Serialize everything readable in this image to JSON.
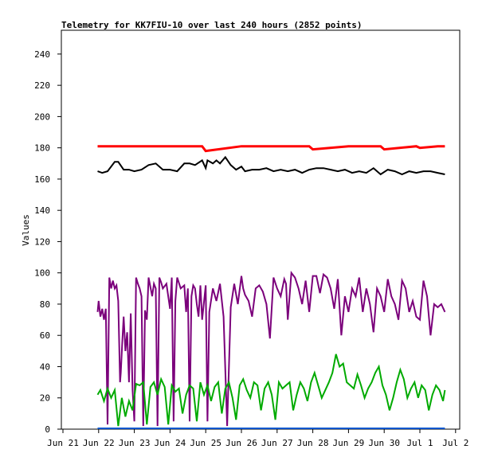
{
  "chart_data": {
    "type": "line",
    "title": "Telemetry for KK7FIU-10 over last 240 hours (2852 points)",
    "ylabel": "Values",
    "xlabel": "",
    "ylim": [
      0,
      250
    ],
    "xlim": [
      0,
      11
    ],
    "grid": false,
    "legend": "none",
    "yticks": [
      0,
      20,
      40,
      60,
      80,
      100,
      120,
      140,
      160,
      180,
      200,
      220,
      240
    ],
    "xticks": [
      {
        "x": 0,
        "label": "Jun 21"
      },
      {
        "x": 1,
        "label": "Jun 22"
      },
      {
        "x": 2,
        "label": "Jun 23"
      },
      {
        "x": 3,
        "label": "Jun 24"
      },
      {
        "x": 4,
        "label": "Jun 25"
      },
      {
        "x": 5,
        "label": "Jun 26"
      },
      {
        "x": 6,
        "label": "Jun 27"
      },
      {
        "x": 7,
        "label": "Jun 28"
      },
      {
        "x": 8,
        "label": "Jun 29"
      },
      {
        "x": 9,
        "label": "Jun 30"
      },
      {
        "x": 10,
        "label": "Jul 1"
      },
      {
        "x": 11,
        "label": "Jul 2"
      }
    ],
    "series": [
      {
        "color": "#ff0000",
        "x": [
          0.97,
          2.0,
          2.9,
          3.9,
          4.0,
          5.0,
          6.0,
          6.9,
          7.0,
          8.0,
          8.9,
          9.0,
          9.9,
          10.0,
          10.5,
          10.7
        ],
        "y": [
          181,
          181,
          181,
          181,
          178,
          181,
          181,
          181,
          179,
          181,
          181,
          179,
          181,
          180,
          181,
          181
        ]
      },
      {
        "color": "#000000",
        "x": [
          0.97,
          1.1,
          1.25,
          1.45,
          1.5,
          1.55,
          1.7,
          1.85,
          2.0,
          2.2,
          2.4,
          2.6,
          2.8,
          3.0,
          3.2,
          3.4,
          3.55,
          3.7,
          3.9,
          4.0,
          4.05,
          4.2,
          4.3,
          4.4,
          4.55,
          4.7,
          4.85,
          5.0,
          5.1,
          5.3,
          5.5,
          5.7,
          5.9,
          6.1,
          6.3,
          6.5,
          6.7,
          6.9,
          7.1,
          7.3,
          7.5,
          7.7,
          7.9,
          8.1,
          8.3,
          8.5,
          8.7,
          8.9,
          9.1,
          9.3,
          9.5,
          9.7,
          9.9,
          10.1,
          10.3,
          10.5,
          10.7
        ],
        "y": [
          165,
          164,
          165,
          171,
          171,
          171,
          166,
          166,
          165,
          166,
          169,
          170,
          166,
          166,
          165,
          170,
          170,
          169,
          172,
          167,
          172,
          170,
          172,
          170,
          174,
          169,
          166,
          168,
          165,
          166,
          166,
          167,
          165,
          166,
          165,
          166,
          164,
          166,
          167,
          167,
          166,
          165,
          166,
          164,
          165,
          164,
          167,
          163,
          166,
          165,
          163,
          165,
          164,
          165,
          165,
          164,
          163
        ]
      },
      {
        "color": "#7b007b",
        "x": [
          0.97,
          1.0,
          1.05,
          1.1,
          1.15,
          1.2,
          1.25,
          1.3,
          1.35,
          1.4,
          1.45,
          1.5,
          1.55,
          1.6,
          1.62,
          1.66,
          1.7,
          1.75,
          1.8,
          1.85,
          1.9,
          1.95,
          2.0,
          2.05,
          2.1,
          2.15,
          2.2,
          2.25,
          2.3,
          2.35,
          2.4,
          2.5,
          2.55,
          2.6,
          2.65,
          2.7,
          2.75,
          2.8,
          2.9,
          3.0,
          3.05,
          3.1,
          3.15,
          3.2,
          3.3,
          3.4,
          3.45,
          3.5,
          3.55,
          3.6,
          3.65,
          3.7,
          3.75,
          3.8,
          3.85,
          3.9,
          4.0,
          4.05,
          4.1,
          4.2,
          4.3,
          4.4,
          4.5,
          4.6,
          4.7,
          4.8,
          4.9,
          5.0,
          5.05,
          5.1,
          5.2,
          5.3,
          5.4,
          5.5,
          5.6,
          5.7,
          5.8,
          5.9,
          6.0,
          6.1,
          6.2,
          6.25,
          6.3,
          6.4,
          6.5,
          6.6,
          6.7,
          6.8,
          6.9,
          7.0,
          7.1,
          7.2,
          7.3,
          7.4,
          7.5,
          7.6,
          7.7,
          7.8,
          7.9,
          8.0,
          8.1,
          8.2,
          8.3,
          8.4,
          8.5,
          8.6,
          8.7,
          8.8,
          8.9,
          9.0,
          9.1,
          9.2,
          9.3,
          9.4,
          9.5,
          9.6,
          9.7,
          9.8,
          9.9,
          10.0,
          10.1,
          10.2,
          10.3,
          10.4,
          10.5,
          10.6,
          10.7
        ],
        "y": [
          75,
          82,
          72,
          77,
          70,
          77,
          3,
          97,
          90,
          95,
          90,
          92,
          82,
          30,
          36,
          55,
          72,
          50,
          62,
          30,
          74,
          25,
          5,
          97,
          93,
          90,
          85,
          2,
          76,
          70,
          97,
          85,
          93,
          90,
          2,
          97,
          94,
          90,
          93,
          77,
          97,
          5,
          82,
          97,
          90,
          92,
          75,
          90,
          5,
          85,
          92,
          90,
          80,
          72,
          92,
          70,
          92,
          5,
          75,
          90,
          82,
          93,
          72,
          2,
          78,
          93,
          80,
          98,
          90,
          86,
          82,
          72,
          90,
          92,
          88,
          80,
          58,
          97,
          90,
          85,
          96,
          93,
          70,
          100,
          97,
          90,
          80,
          95,
          75,
          98,
          98,
          87,
          99,
          97,
          90,
          77,
          96,
          60,
          85,
          75,
          90,
          85,
          97,
          75,
          90,
          80,
          62,
          90,
          85,
          75,
          96,
          85,
          80,
          70,
          95,
          90,
          75,
          82,
          72,
          70,
          95,
          85,
          60,
          80,
          78,
          80,
          75
        ]
      },
      {
        "color": "#00aa00",
        "x": [
          0.97,
          1.05,
          1.15,
          1.25,
          1.35,
          1.45,
          1.55,
          1.65,
          1.75,
          1.85,
          1.95,
          2.05,
          2.15,
          2.25,
          2.35,
          2.45,
          2.55,
          2.65,
          2.75,
          2.85,
          2.95,
          3.05,
          3.15,
          3.25,
          3.35,
          3.45,
          3.55,
          3.65,
          3.75,
          3.85,
          3.95,
          4.05,
          4.15,
          4.25,
          4.35,
          4.45,
          4.55,
          4.65,
          4.75,
          4.85,
          4.95,
          5.05,
          5.15,
          5.25,
          5.35,
          5.45,
          5.55,
          5.65,
          5.75,
          5.85,
          5.95,
          6.05,
          6.15,
          6.25,
          6.35,
          6.45,
          6.55,
          6.65,
          6.75,
          6.85,
          6.95,
          7.05,
          7.15,
          7.25,
          7.35,
          7.45,
          7.55,
          7.65,
          7.75,
          7.85,
          7.95,
          8.05,
          8.15,
          8.25,
          8.35,
          8.45,
          8.55,
          8.65,
          8.75,
          8.85,
          8.95,
          9.05,
          9.15,
          9.25,
          9.35,
          9.45,
          9.55,
          9.65,
          9.75,
          9.85,
          9.95,
          10.05,
          10.15,
          10.25,
          10.35,
          10.45,
          10.55,
          10.65,
          10.7
        ],
        "y": [
          22,
          25,
          18,
          26,
          20,
          25,
          2,
          20,
          8,
          18,
          12,
          29,
          28,
          30,
          3,
          27,
          30,
          22,
          32,
          27,
          3,
          28,
          24,
          26,
          10,
          22,
          28,
          26,
          5,
          30,
          22,
          28,
          18,
          27,
          30,
          10,
          26,
          30,
          20,
          6,
          28,
          32,
          25,
          20,
          30,
          28,
          12,
          26,
          30,
          22,
          6,
          30,
          26,
          28,
          30,
          12,
          22,
          30,
          26,
          18,
          30,
          36,
          28,
          20,
          25,
          30,
          36,
          48,
          40,
          42,
          30,
          28,
          26,
          35,
          28,
          20,
          26,
          30,
          36,
          40,
          28,
          22,
          12,
          20,
          30,
          38,
          32,
          20,
          26,
          30,
          20,
          28,
          25,
          12,
          22,
          28,
          25,
          18,
          25
        ]
      },
      {
        "color": "#0055cc",
        "x": [
          0.97,
          10.7
        ],
        "y": [
          0.5,
          0.5
        ]
      }
    ]
  }
}
